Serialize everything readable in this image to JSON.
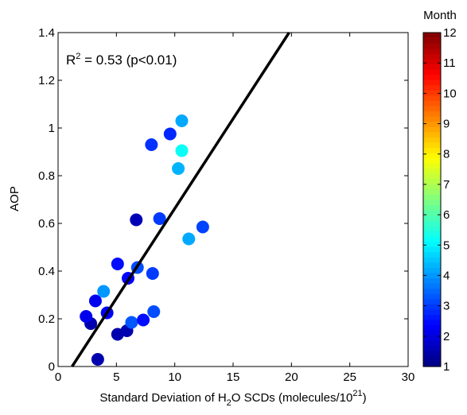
{
  "chart_data": {
    "type": "scatter",
    "xlabel": {
      "pre": "Standard Deviation of H",
      "sub": "2",
      "mid": "O SCDs (molecules/10",
      "sup": "21",
      "post": ")"
    },
    "ylabel": "AOP",
    "xlim": [
      0,
      30
    ],
    "ylim": [
      0,
      1.4
    ],
    "xticks": [
      "0",
      "5",
      "10",
      "15",
      "20",
      "25",
      "30"
    ],
    "yticks": [
      "0",
      "0.2",
      "0.4",
      "0.6",
      "0.8",
      "1",
      "1.2",
      "1.4"
    ],
    "grid": false,
    "annotation": {
      "pre": "R",
      "sup": "2",
      "post": " = 0.53 (p<0.01)"
    },
    "regression_line": {
      "x": [
        1.2,
        19.8
      ],
      "y": [
        0.0,
        1.4
      ]
    },
    "points": [
      {
        "x": 3.4,
        "y": 0.03,
        "month": 1.5
      },
      {
        "x": 2.8,
        "y": 0.18,
        "month": 1.5
      },
      {
        "x": 2.4,
        "y": 0.21,
        "month": 2.2
      },
      {
        "x": 3.2,
        "y": 0.275,
        "month": 2.2
      },
      {
        "x": 3.9,
        "y": 0.315,
        "month": 4.0
      },
      {
        "x": 4.2,
        "y": 0.225,
        "month": 2.3
      },
      {
        "x": 5.1,
        "y": 0.135,
        "month": 1.5
      },
      {
        "x": 5.1,
        "y": 0.43,
        "month": 2.5
      },
      {
        "x": 5.9,
        "y": 0.15,
        "month": 1.5
      },
      {
        "x": 6.0,
        "y": 0.37,
        "month": 2.4
      },
      {
        "x": 6.3,
        "y": 0.185,
        "month": 3.3
      },
      {
        "x": 6.7,
        "y": 0.615,
        "month": 1.6
      },
      {
        "x": 6.8,
        "y": 0.415,
        "month": 3.2
      },
      {
        "x": 7.3,
        "y": 0.195,
        "month": 2.5
      },
      {
        "x": 8.0,
        "y": 0.93,
        "month": 2.9
      },
      {
        "x": 8.1,
        "y": 0.39,
        "month": 3.0
      },
      {
        "x": 8.2,
        "y": 0.23,
        "month": 3.2
      },
      {
        "x": 8.7,
        "y": 0.62,
        "month": 3.0
      },
      {
        "x": 9.6,
        "y": 0.975,
        "month": 2.8
      },
      {
        "x": 10.3,
        "y": 0.83,
        "month": 4.3
      },
      {
        "x": 10.6,
        "y": 1.03,
        "month": 4.2
      },
      {
        "x": 10.6,
        "y": 0.905,
        "month": 5.2
      },
      {
        "x": 11.2,
        "y": 0.535,
        "month": 4.2
      },
      {
        "x": 12.4,
        "y": 0.585,
        "month": 3.1
      }
    ],
    "colorbar": {
      "title": "Month",
      "range": [
        1,
        12
      ],
      "ticks": [
        "1",
        "2",
        "3",
        "4",
        "5",
        "6",
        "7",
        "8",
        "9",
        "10",
        "11",
        "12"
      ],
      "colormap": "jet"
    }
  }
}
